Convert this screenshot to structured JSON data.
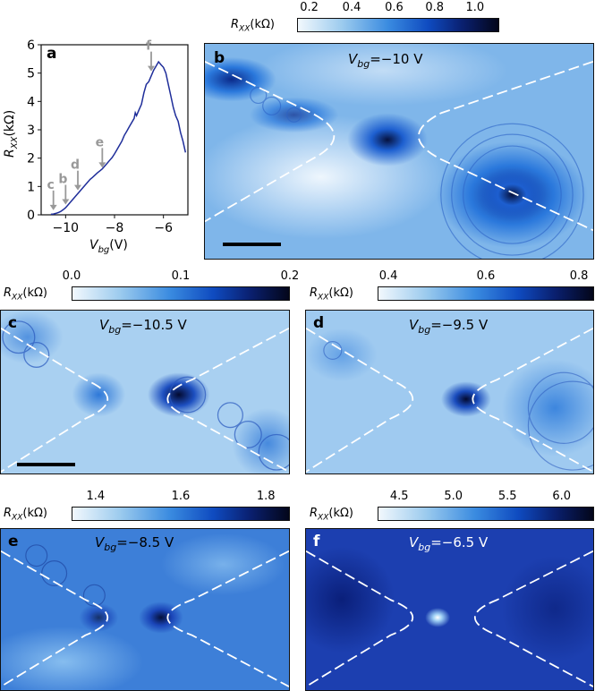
{
  "colorbar_label": "R",
  "colorbar_label_sub": "XX",
  "colorbar_label_unit": "(kΩ)",
  "panels": {
    "a": {
      "letter": "a"
    },
    "b": {
      "letter": "b",
      "title_v": "V",
      "title_sub": "bg",
      "title_val": "=−10 V",
      "ticks": [
        "0.2",
        "0.4",
        "0.6",
        "0.8",
        "1.0"
      ]
    },
    "c": {
      "letter": "c",
      "title_v": "V",
      "title_sub": "bg",
      "title_val": "=−10.5 V",
      "ticks": [
        "0.0",
        "0.1",
        "0.2"
      ]
    },
    "d": {
      "letter": "d",
      "title_v": "V",
      "title_sub": "bg",
      "title_val": "=−9.5 V",
      "ticks": [
        "0.4",
        "0.6",
        "0.8"
      ]
    },
    "e": {
      "letter": "e",
      "title_v": "V",
      "title_sub": "bg",
      "title_val": "=−8.5 V",
      "ticks": [
        "1.4",
        "1.6",
        "1.8"
      ]
    },
    "f": {
      "letter": "f",
      "title_v": "V",
      "title_sub": "bg",
      "title_val": "=−6.5 V",
      "ticks": [
        "4.5",
        "5.0",
        "5.5",
        "6.0"
      ]
    }
  },
  "chart_data": {
    "type": "line",
    "xlabel": "V",
    "xlabel_sub": "bg",
    "xlabel_unit": "(V)",
    "ylabel": "R",
    "ylabel_sub": "XX",
    "ylabel_unit": "(kΩ)",
    "xlim": [
      -11,
      -5
    ],
    "ylim": [
      0,
      6
    ],
    "x_ticks": [
      "−10",
      "−8",
      "−6"
    ],
    "y_ticks": [
      "0",
      "1",
      "2",
      "3",
      "4",
      "5",
      "6"
    ],
    "line_color": "#1f2e9a",
    "arrow_color": "#999999",
    "series": [
      {
        "x": [
          -10.6,
          -10.5,
          -10.4,
          -10.3,
          -10.2,
          -10.1,
          -10.0,
          -9.9,
          -9.8,
          -9.7,
          -9.6,
          -9.5,
          -9.4,
          -9.3,
          -9.2,
          -9.1,
          -9.0,
          -8.9,
          -8.8,
          -8.7,
          -8.6,
          -8.5,
          -8.4,
          -8.3,
          -8.2,
          -8.1,
          -8.0,
          -7.9,
          -7.8,
          -7.7,
          -7.6,
          -7.5,
          -7.4,
          -7.3,
          -7.2,
          -7.15,
          -7.1,
          -7.0,
          -6.9,
          -6.8,
          -6.7,
          -6.6,
          -6.5,
          -6.4,
          -6.3,
          -6.2,
          -6.1,
          -6.0,
          -5.9,
          -5.8,
          -5.7,
          -5.6,
          -5.5,
          -5.4,
          -5.3,
          -5.2,
          -5.1
        ],
        "y": [
          0.02,
          0.03,
          0.05,
          0.08,
          0.12,
          0.18,
          0.25,
          0.35,
          0.45,
          0.55,
          0.65,
          0.75,
          0.85,
          0.95,
          1.05,
          1.15,
          1.25,
          1.32,
          1.4,
          1.48,
          1.55,
          1.62,
          1.72,
          1.82,
          1.92,
          2.02,
          2.15,
          2.3,
          2.45,
          2.6,
          2.8,
          2.95,
          3.1,
          3.25,
          3.4,
          3.6,
          3.5,
          3.7,
          3.9,
          4.3,
          4.6,
          4.7,
          4.9,
          5.1,
          5.25,
          5.4,
          5.3,
          5.2,
          5.0,
          4.6,
          4.2,
          3.8,
          3.5,
          3.3,
          2.9,
          2.6,
          2.2
        ]
      }
    ],
    "arrows": [
      {
        "label": "c",
        "x": -10.5,
        "y": 0.1
      },
      {
        "label": "b",
        "x": -10.0,
        "y": 0.3
      },
      {
        "label": "d",
        "x": -9.5,
        "y": 0.8
      },
      {
        "label": "e",
        "x": -8.5,
        "y": 1.6
      },
      {
        "label": "f",
        "x": -6.5,
        "y": 5.0
      }
    ]
  }
}
